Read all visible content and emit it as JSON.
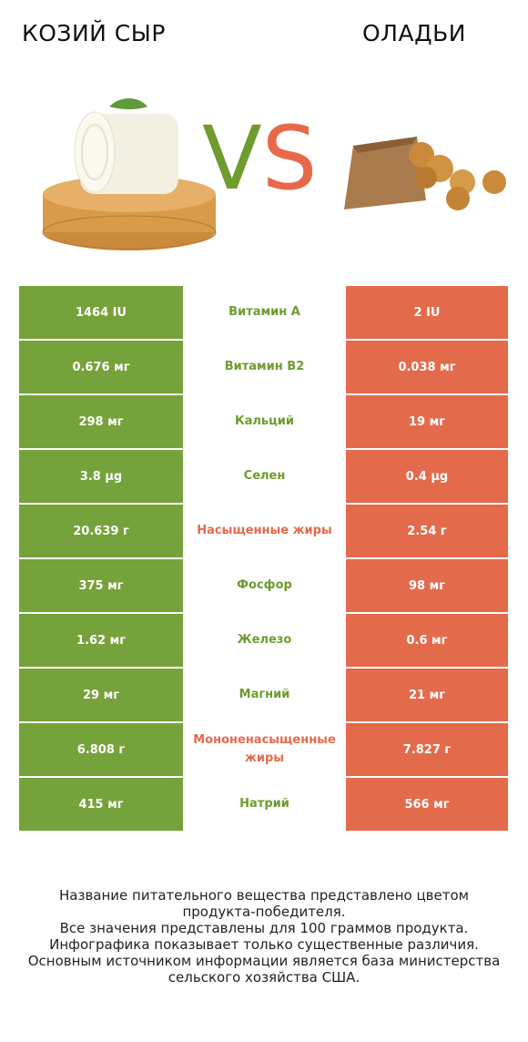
{
  "header": {
    "left_title": "КОЗИЙ СЫР",
    "right_title": "ОЛАДЬИ"
  },
  "vs": {
    "v": "V",
    "s": "S"
  },
  "colors": {
    "left_accent": "#76a23b",
    "right_accent": "#e36b4c"
  },
  "rows": [
    {
      "left": "1464 IU",
      "name": "Витамин А",
      "right": "2 IU",
      "winner": "left"
    },
    {
      "left": "0.676 мг",
      "name": "Витамин B2",
      "right": "0.038 мг",
      "winner": "left"
    },
    {
      "left": "298 мг",
      "name": "Кальций",
      "right": "19 мг",
      "winner": "left"
    },
    {
      "left": "3.8 µg",
      "name": "Селен",
      "right": "0.4 µg",
      "winner": "left"
    },
    {
      "left": "20.639 г",
      "name": "Насыщенные жиры",
      "right": "2.54 г",
      "winner": "right"
    },
    {
      "left": "375 мг",
      "name": "Фосфор",
      "right": "98 мг",
      "winner": "left"
    },
    {
      "left": "1.62 мг",
      "name": "Железо",
      "right": "0.6 мг",
      "winner": "left"
    },
    {
      "left": "29 мг",
      "name": "Магний",
      "right": "21 мг",
      "winner": "left"
    },
    {
      "left": "6.808 г",
      "name": "Мононенасыщенные жиры",
      "right": "7.827 г",
      "winner": "right"
    },
    {
      "left": "415 мг",
      "name": "Натрий",
      "right": "566 мг",
      "winner": "left"
    }
  ],
  "footer": {
    "line1": "Название питательного вещества представлено цветом",
    "line2": "продукта-победителя.",
    "line3": "Все значения представлены для 100 граммов продукта.",
    "line4": "Инфографика показывает только существенные различия.",
    "line5": "Основным источником информации является база министерства",
    "line6": "сельского хозяйства США."
  }
}
